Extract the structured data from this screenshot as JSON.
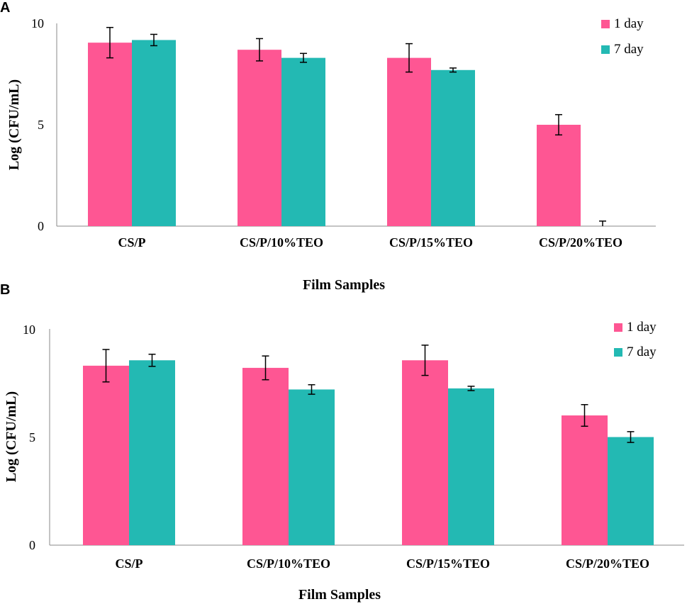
{
  "chart_data": [
    {
      "type": "bar",
      "panel": "A",
      "xlabel": "Film Samples",
      "ylabel": "Log (CFU/mL)",
      "ylim": [
        0,
        10
      ],
      "yticks": [
        "0",
        "5",
        "10"
      ],
      "categories": [
        "CS/P",
        "CS/P/10%TEO",
        "CS/P/15%TEO",
        "CS/P/20%TEO"
      ],
      "series": [
        {
          "name": "1 day",
          "color": "#fe5693",
          "values": [
            9.05,
            8.7,
            8.3,
            5.0
          ],
          "errors": [
            0.75,
            0.55,
            0.7,
            0.5
          ]
        },
        {
          "name": "7 day",
          "color": "#23b9b3",
          "values": [
            9.18,
            8.3,
            7.7,
            0.0
          ],
          "errors": [
            0.28,
            0.22,
            0.1,
            0.25
          ]
        }
      ],
      "legend": "top-right"
    },
    {
      "type": "bar",
      "panel": "B",
      "xlabel": "Film Samples",
      "ylabel": "Log (CFU/mL)",
      "ylim": [
        0,
        10
      ],
      "yticks": [
        "0",
        "5",
        "10"
      ],
      "categories": [
        "CS/P",
        "CS/P/10%TEO",
        "CS/P/15%TEO",
        "CS/P/20%TEO"
      ],
      "series": [
        {
          "name": "1 day",
          "color": "#fe5693",
          "values": [
            8.3,
            8.2,
            8.55,
            6.0
          ],
          "errors": [
            0.75,
            0.55,
            0.7,
            0.5
          ]
        },
        {
          "name": "7 day",
          "color": "#23b9b3",
          "values": [
            8.55,
            7.2,
            7.25,
            5.0
          ],
          "errors": [
            0.28,
            0.22,
            0.1,
            0.25
          ]
        }
      ],
      "legend": "top-right"
    }
  ]
}
